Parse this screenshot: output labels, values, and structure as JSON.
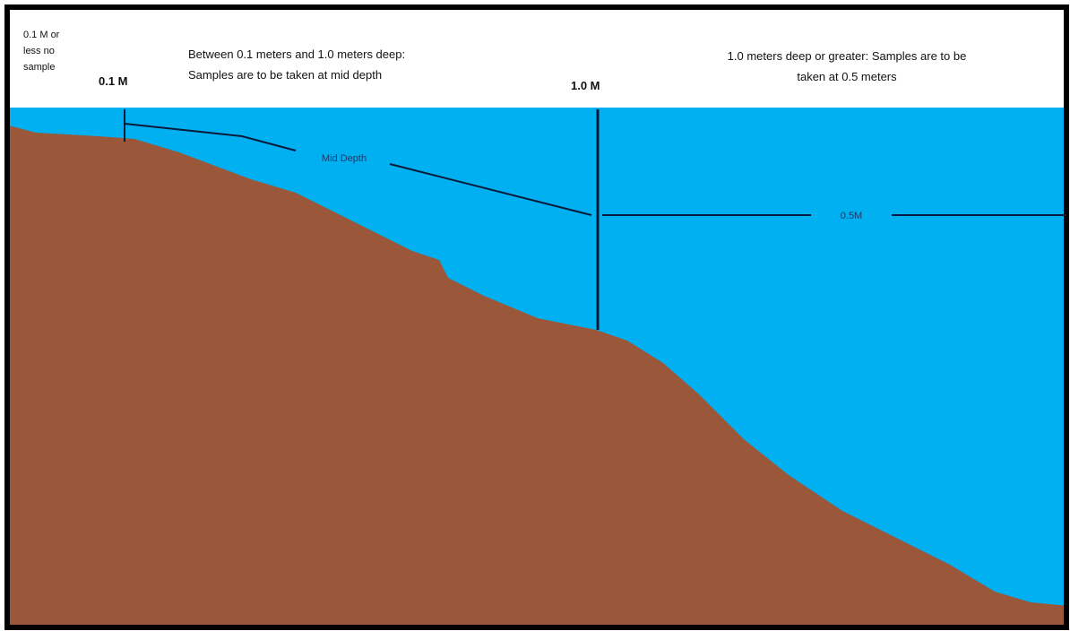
{
  "labels": {
    "no_sample": [
      "0.1 M or",
      "less no",
      "sample"
    ],
    "shallow_marker": "0.1 M",
    "mid_zone": [
      "Between 0.1 meters and 1.0 meters deep:",
      "Samples are to be taken at mid depth"
    ],
    "deep_marker": "1.0 M",
    "deep_zone": [
      "1.0 meters deep or greater: Samples are to be",
      "taken at 0.5 meters"
    ],
    "mid_depth": "Mid Depth",
    "half_meter": "0.5M"
  }
}
